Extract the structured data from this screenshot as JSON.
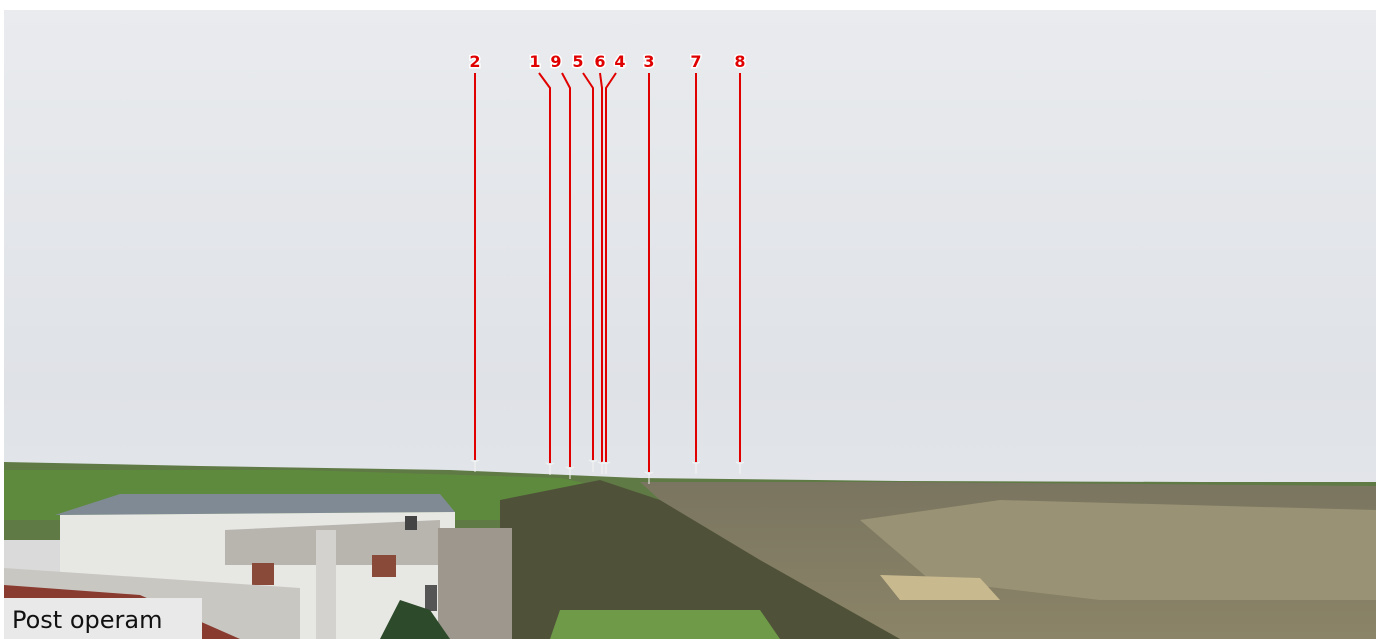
{
  "markers": [
    "2",
    "1",
    "9",
    "5",
    "6",
    "4",
    "3",
    "7",
    "8"
  ],
  "caption": "Post operam"
}
